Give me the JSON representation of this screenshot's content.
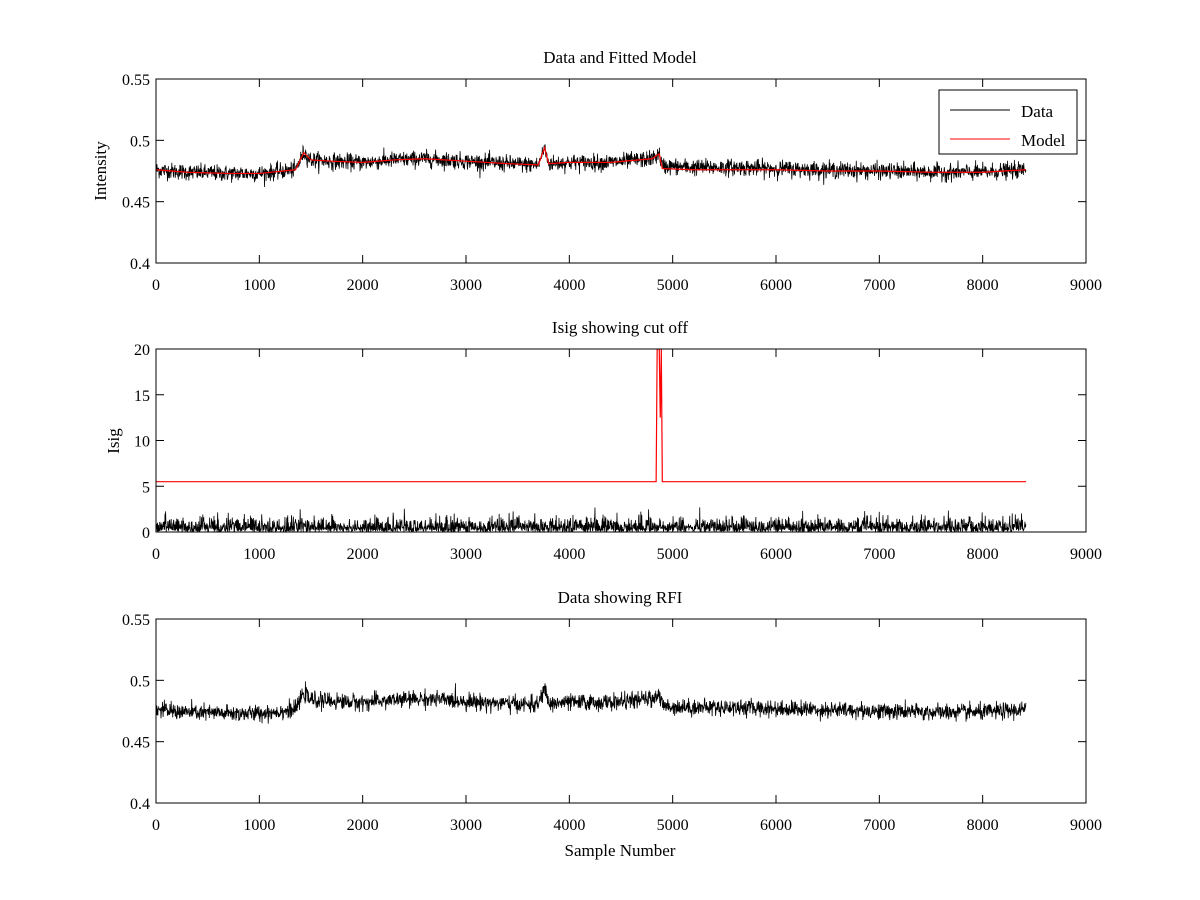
{
  "figure": {
    "background": "#ffffff",
    "colors": {
      "data": "#000000",
      "model": "#ff0000",
      "axis": "#000000"
    }
  },
  "chart_data": [
    {
      "type": "line",
      "title": "Data and Fitted Model",
      "xlabel": "",
      "ylabel": "Intensity",
      "xlim": [
        0,
        9000
      ],
      "ylim": [
        0.4,
        0.55
      ],
      "xticks": [
        "0",
        "1000",
        "2000",
        "3000",
        "4000",
        "5000",
        "6000",
        "7000",
        "8000",
        "9000"
      ],
      "yticks": [
        "0.4",
        "0.45",
        "0.5",
        "0.55"
      ],
      "xtick_values": [
        0,
        1000,
        2000,
        3000,
        4000,
        5000,
        6000,
        7000,
        8000,
        9000
      ],
      "ytick_values": [
        0.4,
        0.45,
        0.5,
        0.55
      ],
      "grid": false,
      "legend": {
        "position": "top-right",
        "entries": [
          "Data",
          "Model"
        ]
      },
      "series": [
        {
          "name": "Data",
          "color": "#000000",
          "kind": "noisy",
          "n_samples": 8420,
          "noise_amplitude": 0.006,
          "baseline_x": [
            0,
            300,
            700,
            1000,
            1350,
            1430,
            1500,
            1700,
            2000,
            2300,
            2600,
            3000,
            3400,
            3700,
            3760,
            3800,
            4000,
            4400,
            4800,
            4870,
            4900,
            5200,
            5600,
            6000,
            6500,
            7000,
            7500,
            8000,
            8420
          ],
          "baseline_y": [
            0.476,
            0.474,
            0.473,
            0.473,
            0.476,
            0.49,
            0.484,
            0.483,
            0.482,
            0.484,
            0.485,
            0.483,
            0.481,
            0.48,
            0.494,
            0.481,
            0.482,
            0.482,
            0.485,
            0.489,
            0.479,
            0.478,
            0.478,
            0.477,
            0.476,
            0.475,
            0.474,
            0.474,
            0.476
          ]
        },
        {
          "name": "Model",
          "color": "#ff0000",
          "kind": "line",
          "x": [
            0,
            300,
            700,
            1000,
            1350,
            1430,
            1500,
            1700,
            2000,
            2300,
            2600,
            3000,
            3400,
            3700,
            3760,
            3800,
            4000,
            4400,
            4800,
            4870,
            4900,
            5200,
            5600,
            6000,
            6500,
            7000,
            7500,
            8000,
            8420
          ],
          "y": [
            0.476,
            0.474,
            0.473,
            0.473,
            0.476,
            0.49,
            0.484,
            0.483,
            0.482,
            0.484,
            0.485,
            0.483,
            0.481,
            0.48,
            0.494,
            0.481,
            0.482,
            0.482,
            0.485,
            0.489,
            0.477,
            0.476,
            0.476,
            0.476,
            0.475,
            0.475,
            0.474,
            0.474,
            0.476
          ]
        }
      ]
    },
    {
      "type": "line",
      "title": "Isig showing cut off",
      "xlabel": "",
      "ylabel": "Isig",
      "xlim": [
        0,
        9000
      ],
      "ylim": [
        0,
        20
      ],
      "xticks": [
        "0",
        "1000",
        "2000",
        "3000",
        "4000",
        "5000",
        "6000",
        "7000",
        "8000",
        "9000"
      ],
      "yticks": [
        "0",
        "5",
        "10",
        "15",
        "20"
      ],
      "xtick_values": [
        0,
        1000,
        2000,
        3000,
        4000,
        5000,
        6000,
        7000,
        8000,
        9000
      ],
      "ytick_values": [
        0,
        5,
        10,
        15,
        20
      ],
      "grid": false,
      "series": [
        {
          "name": "Isig",
          "color": "#000000",
          "kind": "noisy-abs",
          "n_samples": 8420,
          "noise_amplitude": 1.0,
          "max_value": 4.2
        },
        {
          "name": "Cut off",
          "color": "#ff0000",
          "kind": "line",
          "x": [
            0,
            4840,
            4850,
            4870,
            4880,
            4890,
            4900,
            8420
          ],
          "y": [
            5.5,
            5.5,
            20,
            20,
            12.5,
            20,
            5.5,
            5.5
          ]
        }
      ]
    },
    {
      "type": "line",
      "title": "Data showing RFI",
      "xlabel": "Sample Number",
      "ylabel": "",
      "xlim": [
        0,
        9000
      ],
      "ylim": [
        0.4,
        0.55
      ],
      "xticks": [
        "0",
        "1000",
        "2000",
        "3000",
        "4000",
        "5000",
        "6000",
        "7000",
        "8000",
        "9000"
      ],
      "yticks": [
        "0.4",
        "0.45",
        "0.5",
        "0.55"
      ],
      "xtick_values": [
        0,
        1000,
        2000,
        3000,
        4000,
        5000,
        6000,
        7000,
        8000,
        9000
      ],
      "ytick_values": [
        0.4,
        0.45,
        0.5,
        0.55
      ],
      "grid": false,
      "series": [
        {
          "name": "Data",
          "color": "#000000",
          "kind": "noisy",
          "n_samples": 8420,
          "noise_amplitude": 0.006,
          "baseline_x": [
            0,
            300,
            700,
            1000,
            1350,
            1430,
            1500,
            1700,
            2000,
            2300,
            2600,
            3000,
            3400,
            3700,
            3760,
            3800,
            4000,
            4400,
            4800,
            4870,
            4900,
            5200,
            5600,
            6000,
            6500,
            7000,
            7500,
            8000,
            8420
          ],
          "baseline_y": [
            0.476,
            0.474,
            0.473,
            0.473,
            0.476,
            0.49,
            0.484,
            0.483,
            0.482,
            0.484,
            0.485,
            0.483,
            0.481,
            0.48,
            0.494,
            0.481,
            0.482,
            0.482,
            0.485,
            0.489,
            0.479,
            0.478,
            0.478,
            0.477,
            0.476,
            0.475,
            0.474,
            0.474,
            0.476
          ]
        }
      ]
    }
  ]
}
